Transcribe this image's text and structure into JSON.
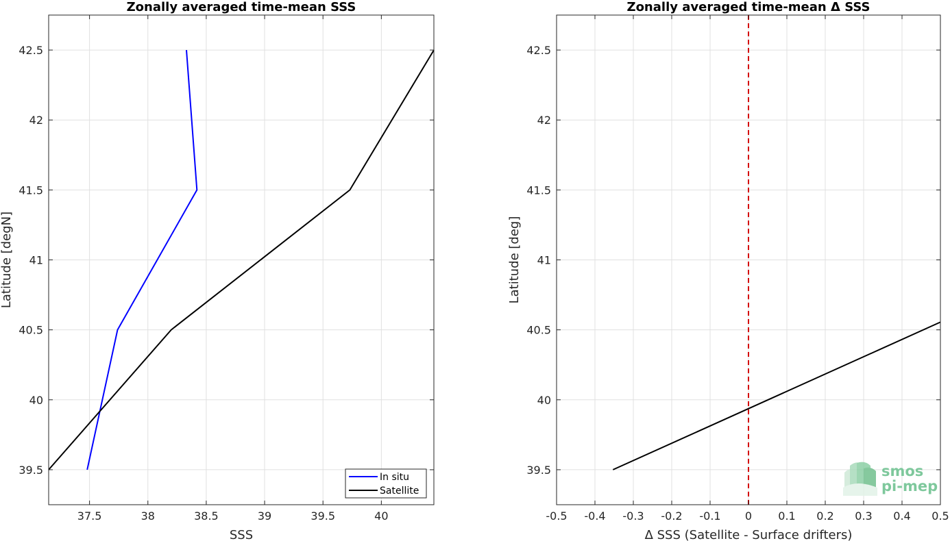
{
  "chart_data": [
    {
      "type": "line",
      "title": "Zonally averaged time-mean SSS",
      "xlabel": "SSS",
      "ylabel": "Latitude [degN]",
      "xlim": [
        37.15,
        40.45
      ],
      "ylim": [
        39.25,
        42.75
      ],
      "xticks": [
        "37.5",
        "38",
        "38.5",
        "39",
        "39.5",
        "40"
      ],
      "yticks": [
        "39.5",
        "40",
        "40.5",
        "41",
        "41.5",
        "42",
        "42.5"
      ],
      "grid": true,
      "legend_position": "bottom-right",
      "series": [
        {
          "name": "In situ",
          "color": "#0000ff",
          "x": [
            37.48,
            37.74,
            38.42,
            38.33
          ],
          "y": [
            39.5,
            40.5,
            41.5,
            42.5
          ]
        },
        {
          "name": "Satellite",
          "color": "#000000",
          "x": [
            37.15,
            38.2,
            39.73,
            40.45
          ],
          "y": [
            39.5,
            40.5,
            41.5,
            42.5
          ]
        }
      ]
    },
    {
      "type": "line",
      "title": "Zonally averaged time-mean Δ SSS",
      "xlabel": "Δ SSS (Satellite - Surface drifters)",
      "ylabel": "Latitude [deg]",
      "xlim": [
        -0.5,
        0.5
      ],
      "ylim": [
        39.25,
        42.75
      ],
      "xticks": [
        "-0.5",
        "-0.4",
        "-0.3",
        "-0.2",
        "-0.1",
        "0",
        "0.1",
        "0.2",
        "0.3",
        "0.4",
        "0.5"
      ],
      "yticks": [
        "39.5",
        "40",
        "40.5",
        "41",
        "41.5",
        "42",
        "42.5"
      ],
      "grid": true,
      "reference_line": {
        "x": 0,
        "color": "#d40000",
        "style": "dashed"
      },
      "series": [
        {
          "color": "#000000",
          "x": [
            -0.353,
            0.5
          ],
          "y": [
            39.5,
            40.555
          ]
        }
      ]
    }
  ],
  "logo": {
    "line1": "smos",
    "line2": "pi-mep",
    "color": "#7ec89c"
  }
}
